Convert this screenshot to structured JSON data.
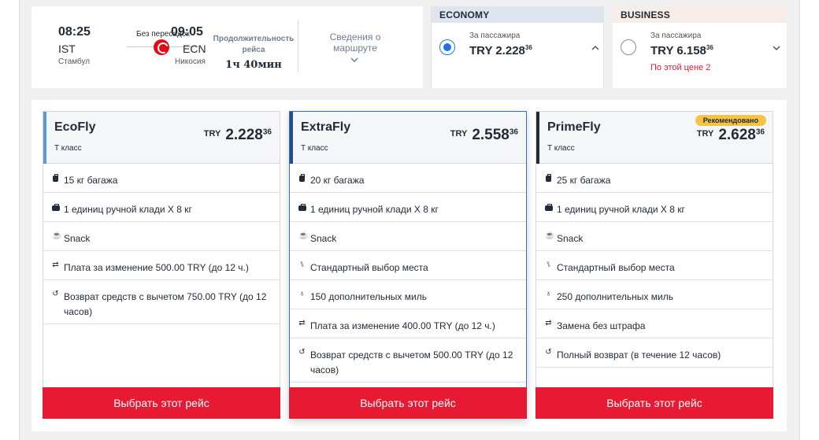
{
  "flight": {
    "departure": {
      "time": "08:25",
      "code": "IST",
      "city": "Стамбул"
    },
    "arrival": {
      "time": "09:05",
      "code": "ECN",
      "city": "Никосия"
    },
    "stops_label": "Без пересадок",
    "duration_label": "Продолжительность рейса",
    "duration": "1ч 40мин",
    "route_details_label": "Сведения о маршруте"
  },
  "cabins": {
    "economy": {
      "title": "ECONOMY",
      "per_passenger": "За пассажира",
      "price": "TRY 2.228",
      "price_decimals": "36",
      "selected": true
    },
    "business": {
      "title": "BUSINESS",
      "per_passenger": "За пассажира",
      "price": "TRY 6.158",
      "price_decimals": "36",
      "seats_left": "По этой цене 2",
      "selected": false
    }
  },
  "fares": [
    {
      "name": "EcoFly",
      "class": "T класс",
      "currency": "TRY",
      "amount": "2.228",
      "decimals": "36",
      "accent_color": "#5b9bd5",
      "features": [
        {
          "icon": "luggage-icon",
          "text": "15 кг багажа"
        },
        {
          "icon": "carry-on-bag-icon",
          "text": "1 единиц ручной клади X 8 кг"
        },
        {
          "icon": "snack-icon",
          "text": "Snack"
        },
        {
          "icon": "change-fee-icon",
          "text": "Плата за изменение 500.00 TRY (до 12 ч.)"
        },
        {
          "icon": "refund-icon",
          "text": "Возврат средств с вычетом 750.00 TRY (до 12 часов)"
        }
      ],
      "button": "Выбрать этот рейс"
    },
    {
      "name": "ExtraFly",
      "class": "T класс",
      "currency": "TRY",
      "amount": "2.558",
      "decimals": "36",
      "accent_color": "#1f4e8c",
      "features": [
        {
          "icon": "luggage-icon",
          "text": "20 кг багажа"
        },
        {
          "icon": "carry-on-bag-icon",
          "text": "1 единиц ручной клади X 8 кг"
        },
        {
          "icon": "snack-icon",
          "text": "Snack"
        },
        {
          "icon": "seat-icon",
          "text": "Стандартный выбор места"
        },
        {
          "icon": "miles-icon",
          "text": "150 дополнительных миль"
        },
        {
          "icon": "change-fee-icon",
          "text": "Плата за изменение 400.00 TRY (до 12 ч.)"
        },
        {
          "icon": "refund-icon",
          "text": "Возврат средств с вычетом 500.00 TRY (до 12 часов)"
        }
      ],
      "button": "Выбрать этот рейс"
    },
    {
      "name": "PrimeFly",
      "class": "T класс",
      "currency": "TRY",
      "amount": "2.628",
      "decimals": "36",
      "accent_color": "#232b38",
      "badge": "Рекомендовано",
      "features": [
        {
          "icon": "luggage-icon",
          "text": "25 кг багажа"
        },
        {
          "icon": "carry-on-bag-icon",
          "text": "1 единиц ручной клади X 8 кг"
        },
        {
          "icon": "snack-icon",
          "text": "Snack"
        },
        {
          "icon": "seat-icon",
          "text": "Стандартный выбор места"
        },
        {
          "icon": "miles-icon",
          "text": "250 дополнительных миль"
        },
        {
          "icon": "change-fee-icon",
          "text": "Замена без штрафа"
        },
        {
          "icon": "refund-icon",
          "text": "Полный возврат (в течение 12 часов)"
        }
      ],
      "button": "Выбрать этот рейс"
    }
  ],
  "colors": {
    "brand_red": "#e81932",
    "selected_blue": "#1a73e8",
    "badge_yellow": "#f6c343"
  }
}
